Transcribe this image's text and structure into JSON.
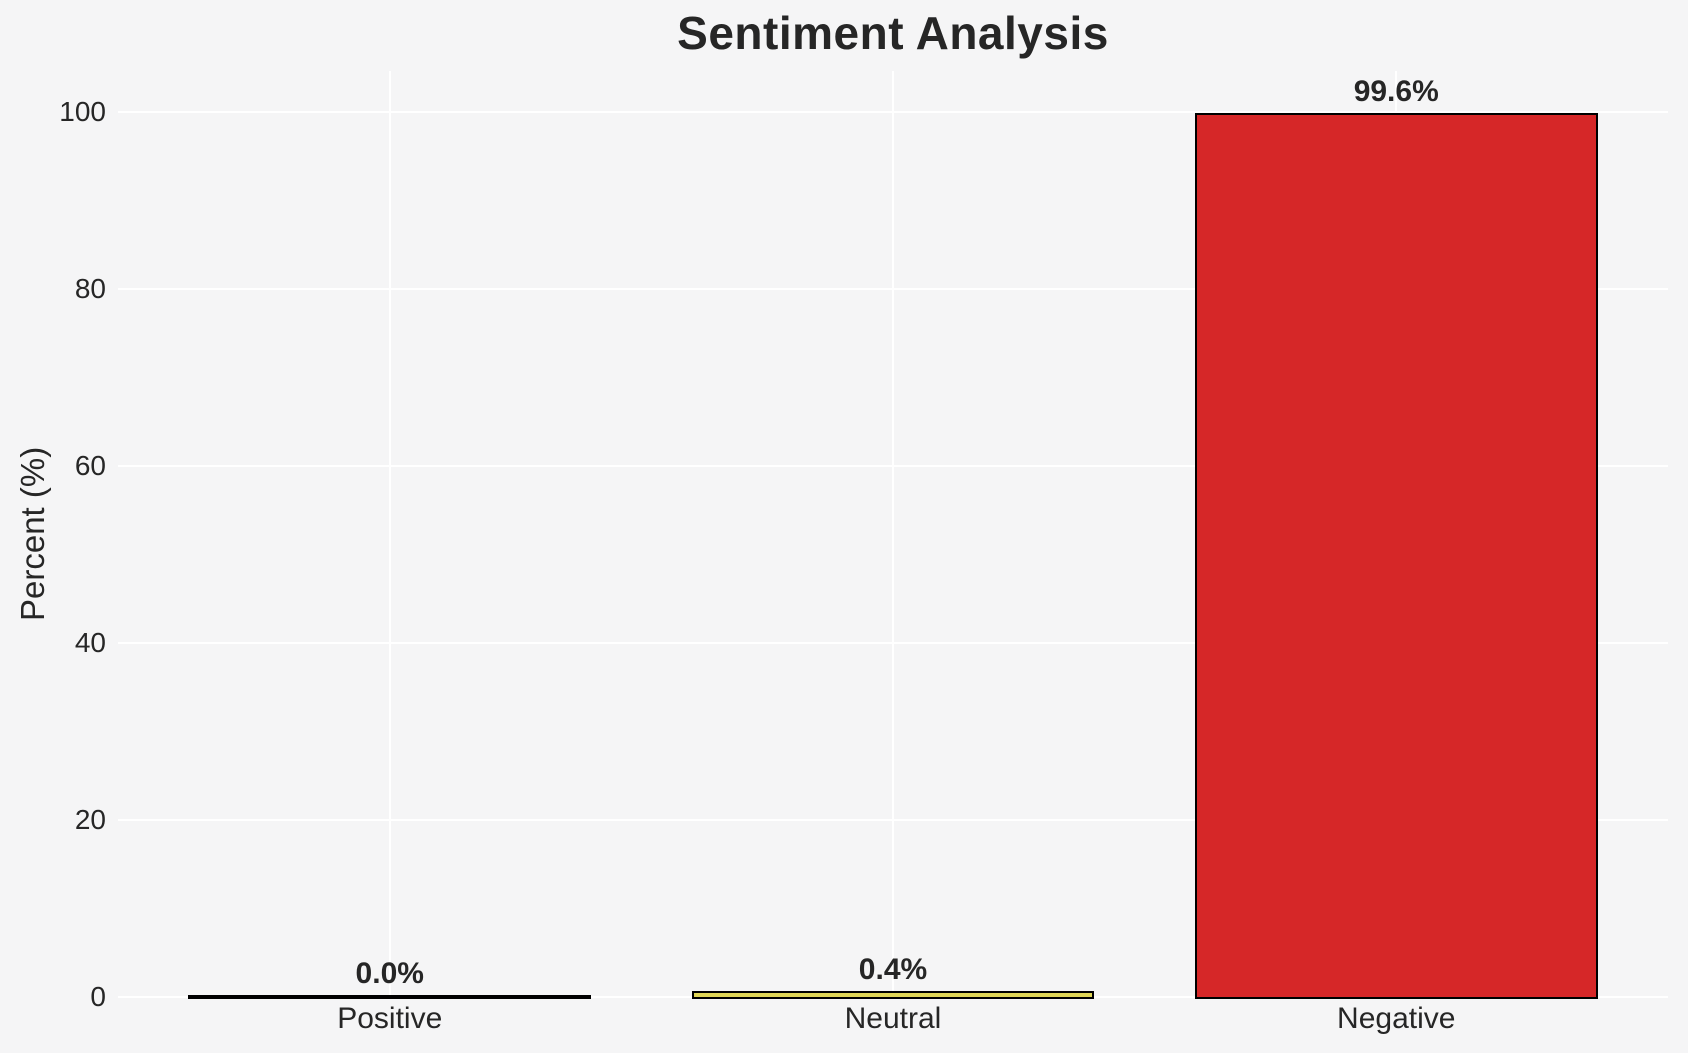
{
  "chart_data": {
    "type": "bar",
    "title": "Sentiment Analysis",
    "categories": [
      "Positive",
      "Neutral",
      "Negative"
    ],
    "values": [
      0.0,
      0.4,
      99.6
    ],
    "bar_labels": [
      "0.0%",
      "0.4%",
      "99.6%"
    ],
    "xlabel": "",
    "ylabel": "Percent (%)",
    "yticks": [
      0,
      20,
      40,
      60,
      80,
      100
    ],
    "ylim": [
      0,
      104.6
    ],
    "grid": "horizontal and vertical white gridlines",
    "legend": false,
    "colors": {
      "background": "#f5f5f6",
      "grid": "#ffffff",
      "bar_edge": "#000000",
      "text": "#262626",
      "bars": [
        "#4caf50",
        "#e0d656",
        "#d62728"
      ]
    }
  }
}
